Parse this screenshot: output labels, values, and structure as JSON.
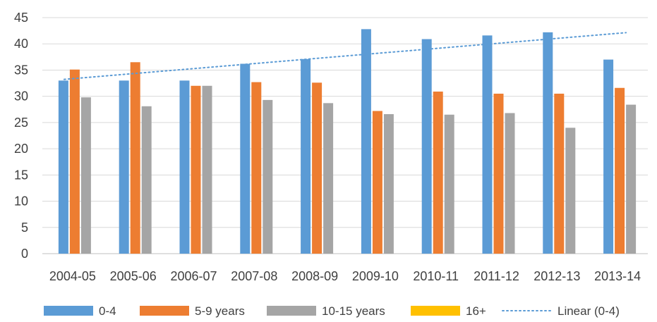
{
  "chart_data": {
    "type": "bar",
    "categories": [
      "2004-05",
      "2005-06",
      "2006-07",
      "2007-08",
      "2008-09",
      "2009-10",
      "2010-11",
      "2011-12",
      "2012-13",
      "2013-14"
    ],
    "series": [
      {
        "name": "0-4",
        "color": "#5B9BD5",
        "values": [
          33.0,
          33.0,
          33.0,
          36.2,
          37.1,
          42.8,
          40.9,
          41.6,
          42.2,
          37.0
        ]
      },
      {
        "name": "5-9 years",
        "color": "#ED7D31",
        "values": [
          35.1,
          36.5,
          32.0,
          32.7,
          32.6,
          27.2,
          30.9,
          30.5,
          30.5,
          31.6
        ]
      },
      {
        "name": "10-15 years",
        "color": "#A5A5A5",
        "values": [
          29.8,
          28.1,
          32.0,
          29.3,
          28.7,
          26.6,
          26.5,
          26.8,
          24.0,
          28.4
        ]
      },
      {
        "name": "16+",
        "color": "#FFC000",
        "values": [
          0,
          0,
          0,
          0,
          0,
          0,
          0,
          0,
          0,
          0
        ]
      }
    ],
    "trendline": {
      "name": "Linear (0-4)",
      "of_series": "0-4",
      "type": "linear",
      "color": "#5B9BD5",
      "style": "dotted"
    },
    "yticks": [
      "0",
      "5",
      "10",
      "15",
      "20",
      "25",
      "30",
      "35",
      "40",
      "45"
    ],
    "ylim": [
      0,
      45
    ],
    "grid": "horizontal",
    "legend_position": "bottom",
    "title": "",
    "xlabel": "",
    "ylabel": ""
  }
}
